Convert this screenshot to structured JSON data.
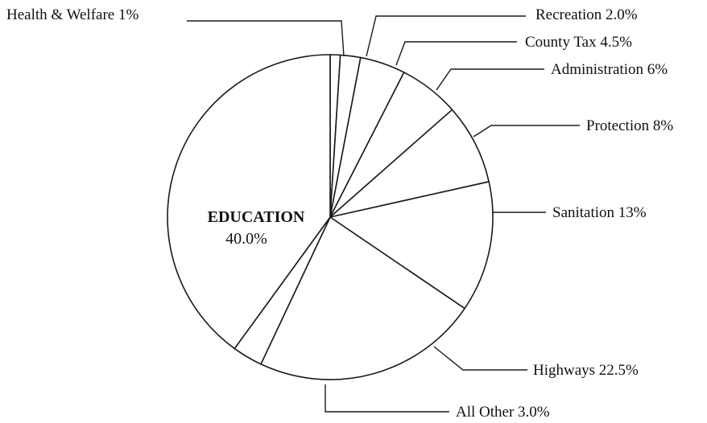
{
  "chart_data": {
    "type": "pie",
    "title": "",
    "center_label": {
      "category": "EDUCATION",
      "value_text": "40.0%"
    },
    "slices": [
      {
        "key": "health-welfare",
        "label_text": "Health & Welfare 1%",
        "value": 1.0
      },
      {
        "key": "recreation",
        "label_text": "Recreation 2.0%",
        "value": 2.0
      },
      {
        "key": "county-tax",
        "label_text": "County Tax 4.5%",
        "value": 4.5
      },
      {
        "key": "administration",
        "label_text": "Administration 6%",
        "value": 6.0
      },
      {
        "key": "protection",
        "label_text": "Protection 8%",
        "value": 8.0
      },
      {
        "key": "sanitation",
        "label_text": "Sanitation 13%",
        "value": 13.0
      },
      {
        "key": "highways",
        "label_text": "Highways 22.5%",
        "value": 22.5
      },
      {
        "key": "all-other",
        "label_text": "All Other 3.0%",
        "value": 3.0
      },
      {
        "key": "education",
        "label_text": "EDUCATION 40.0%",
        "value": 40.0
      }
    ],
    "start_angle_deg": 0,
    "direction": "clockwise",
    "colors": {
      "fill": "#ffffff",
      "stroke": "#1a1a1a",
      "text": "#111111"
    }
  }
}
